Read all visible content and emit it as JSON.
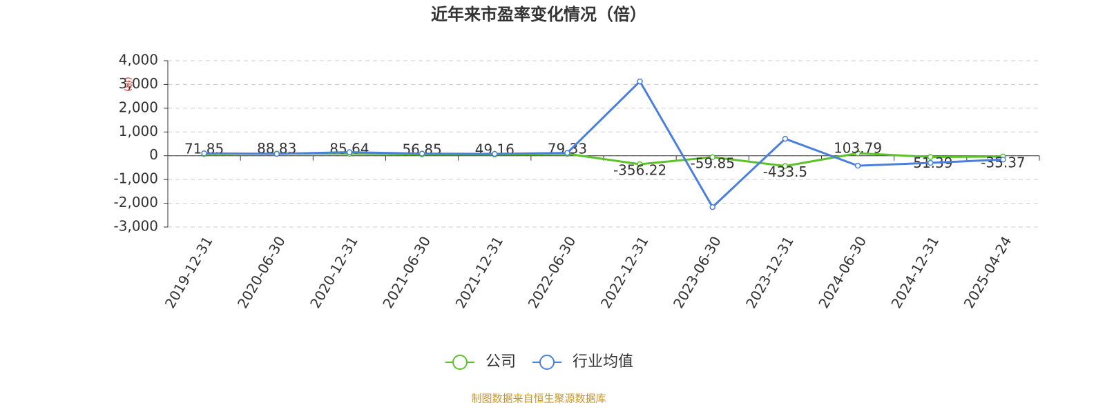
{
  "chart_data": {
    "type": "line",
    "title": "近年来市盈率变化情况（倍）",
    "y_label": "(倍)",
    "categories": [
      "2019-12-31",
      "2020-06-30",
      "2020-12-31",
      "2021-06-30",
      "2021-12-31",
      "2022-06-30",
      "2022-12-31",
      "2023-06-30",
      "2023-12-31",
      "2024-06-30",
      "2024-12-31",
      "2025-04-24"
    ],
    "series": [
      {
        "name": "公司",
        "color": "#5bc22a",
        "show_labels": true,
        "values": [
          71.85,
          88.83,
          85.64,
          56.85,
          49.16,
          79.33,
          -356.22,
          -59.85,
          -433.5,
          103.79,
          -51.39,
          -35.37
        ]
      },
      {
        "name": "行业均值",
        "color": "#4a7fdc",
        "show_labels": false,
        "values": [
          100,
          80,
          150,
          90,
          80,
          120,
          3130,
          -2160,
          715,
          -420,
          -300,
          -160
        ]
      }
    ],
    "ylim": [
      -3000,
      4000
    ],
    "yticks": [
      {
        "value": -3000,
        "label": "-3,000"
      },
      {
        "value": -2000,
        "label": "-2,000"
      },
      {
        "value": -1000,
        "label": "-1,000"
      },
      0,
      {
        "value": 1000,
        "label": "1,000"
      },
      {
        "value": 2000,
        "label": "2,000"
      },
      {
        "value": 3000,
        "label": "3,000"
      },
      {
        "value": 4000,
        "label": "4,000"
      }
    ],
    "grid": true,
    "source": "制图数据来自恒生聚源数据库"
  }
}
